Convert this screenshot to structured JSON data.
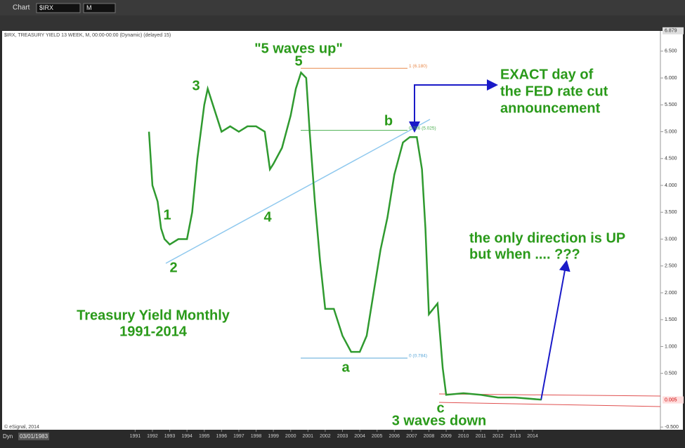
{
  "window": {
    "title": "Chart",
    "symbol": "$IRX",
    "interval": "M",
    "status": "$IRX, TREASURY YIELD 13 WEEK, M, 00:00-00:00 (Dynamic) (delayed 15)",
    "mode": "Dyn",
    "start_date": "03/01/1983",
    "copyright": "© eSignal, 2014"
  },
  "chart_data": {
    "type": "line",
    "color": "#2f9a2f",
    "x": [
      1991.8,
      1992.0,
      1992.3,
      1992.5,
      1992.7,
      1993.0,
      1993.5,
      1994.0,
      1994.3,
      1994.6,
      1995.0,
      1995.2,
      1995.5,
      1996.0,
      1996.5,
      1997.0,
      1997.5,
      1998.0,
      1998.5,
      1998.8,
      1999.0,
      1999.5,
      2000.0,
      2000.3,
      2000.6,
      2000.9,
      2001.1,
      2001.4,
      2001.7,
      2002.0,
      2002.5,
      2003.0,
      2003.5,
      2004.0,
      2004.4,
      2004.8,
      2005.2,
      2005.6,
      2006.0,
      2006.5,
      2006.9,
      2007.3,
      2007.6,
      2007.8,
      2008.0,
      2008.5,
      2008.8,
      2009.0,
      2010.0,
      2011.0,
      2012.0,
      2013.0,
      2014.5
    ],
    "values": [
      5.0,
      4.0,
      3.7,
      3.2,
      3.0,
      2.9,
      3.0,
      3.0,
      3.5,
      4.5,
      5.5,
      5.8,
      5.5,
      5.0,
      5.1,
      5.0,
      5.1,
      5.1,
      5.0,
      4.3,
      4.4,
      4.7,
      5.3,
      5.8,
      6.1,
      6.0,
      5.0,
      3.7,
      2.6,
      1.7,
      1.7,
      1.2,
      0.9,
      0.9,
      1.2,
      2.0,
      2.8,
      3.4,
      4.2,
      4.8,
      4.9,
      4.9,
      4.3,
      3.2,
      1.6,
      1.8,
      0.6,
      0.1,
      0.13,
      0.1,
      0.05,
      0.05,
      0.01
    ],
    "xlim": [
      1983.3,
      2021.4
    ],
    "ylim": [
      -0.55,
      6.89
    ],
    "xticks": [
      1991,
      1992,
      1993,
      1994,
      1995,
      1996,
      1997,
      1998,
      1999,
      2000,
      2001,
      2002,
      2003,
      2004,
      2005,
      2006,
      2007,
      2008,
      2009,
      2010,
      2011,
      2012,
      2013,
      2014
    ],
    "yticks": [
      {
        "value": 6.5,
        "label": "6.500"
      },
      {
        "value": 6,
        "label": "6.000"
      },
      {
        "value": 5.5,
        "label": "5.500"
      },
      {
        "value": 5,
        "label": "5.000"
      },
      {
        "value": 4.5,
        "label": "4.500"
      },
      {
        "value": 4,
        "label": "4.000"
      },
      {
        "value": 3.5,
        "label": "3.500"
      },
      {
        "value": 3,
        "label": "3.000"
      },
      {
        "value": 2.5,
        "label": "2.500"
      },
      {
        "value": 2,
        "label": "2.000"
      },
      {
        "value": 1.5,
        "label": "1.500"
      },
      {
        "value": 1,
        "label": "1.000"
      },
      {
        "value": 0.5,
        "label": "0.500"
      },
      {
        "value": -0.5,
        "label": "-0.500"
      }
    ],
    "markers": [
      {
        "value": 6.879,
        "label": "6.879"
      },
      {
        "value": 0.005,
        "label": "0.005"
      }
    ],
    "fib_levels": [
      {
        "value": 6.18,
        "label": "1 (6.180)",
        "color": "#e8894a"
      },
      {
        "value": 5.025,
        "label": "0.786 (5.025)",
        "color": "#4caf50"
      },
      {
        "value": 0.784,
        "label": "0 (0.784)",
        "color": "#5aa7d8"
      }
    ],
    "annotations": [
      "\"5 waves up\"",
      "5",
      "3",
      "1",
      "2",
      "4",
      "b",
      "a",
      "c",
      "3 waves down",
      "EXACT day of",
      "the FED rate cut",
      "announcement",
      "Treasury Yield Monthly",
      "1991-2014",
      "the only direction is UP",
      "but when .... ???"
    ]
  }
}
